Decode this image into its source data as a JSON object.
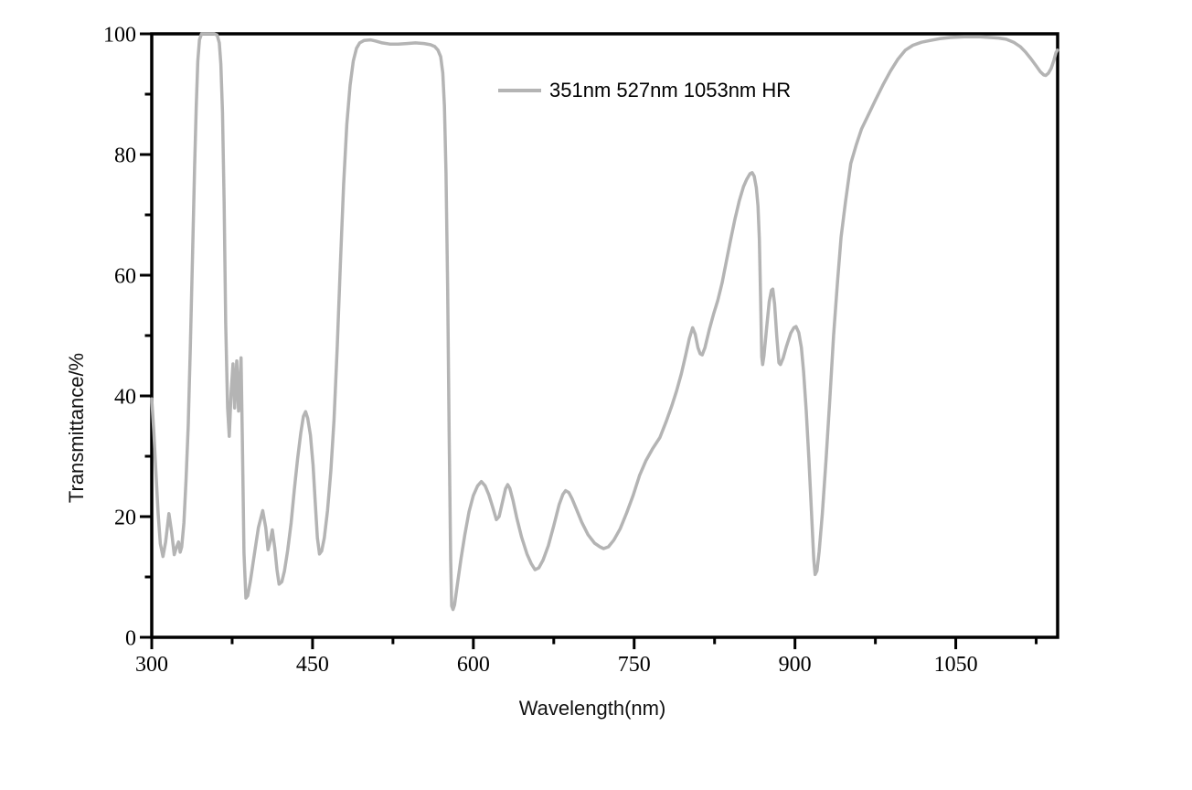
{
  "chart_data": {
    "type": "line",
    "title": "",
    "xlabel": "Wavelength(nm)",
    "ylabel": "Transmittance/%",
    "xlim": [
      300,
      1145
    ],
    "ylim": [
      0,
      100
    ],
    "grid": false,
    "legend_position": "inside-top-center",
    "x_major_ticks": [
      300,
      450,
      600,
      750,
      900,
      1050
    ],
    "x_minor_ticks": [
      375,
      525,
      675,
      825,
      975,
      1125
    ],
    "y_major_ticks": [
      0,
      20,
      40,
      60,
      80,
      100
    ],
    "y_minor_ticks": [
      10,
      30,
      50,
      70,
      90
    ],
    "colors": {
      "curve": "#b4b4b4",
      "axis": "#000000",
      "tick_text": "#000000",
      "title_text": "#111111",
      "background": "#ffffff"
    },
    "series": [
      {
        "name": "351nm 527nm 1053nm HR",
        "color": "#b4b4b4",
        "points": [
          [
            300,
            39.5
          ],
          [
            302,
            34
          ],
          [
            304,
            27
          ],
          [
            306,
            20.5
          ],
          [
            308,
            15.5
          ],
          [
            310.5,
            13.4
          ],
          [
            313,
            15.8
          ],
          [
            316,
            20.5
          ],
          [
            318.5,
            17.5
          ],
          [
            321,
            13.7
          ],
          [
            323,
            14.9
          ],
          [
            325,
            15.8
          ],
          [
            326.5,
            14.1
          ],
          [
            328,
            15
          ],
          [
            330,
            19
          ],
          [
            332,
            26
          ],
          [
            334,
            35
          ],
          [
            336,
            48
          ],
          [
            338,
            63
          ],
          [
            340,
            78
          ],
          [
            341.5,
            88
          ],
          [
            343,
            95.5
          ],
          [
            344.5,
            99
          ],
          [
            346.5,
            100
          ],
          [
            352,
            100
          ],
          [
            358,
            100
          ],
          [
            361,
            99.8
          ],
          [
            363,
            98.5
          ],
          [
            364.5,
            95
          ],
          [
            366,
            87
          ],
          [
            367.5,
            72
          ],
          [
            369,
            52
          ],
          [
            370.8,
            38
          ],
          [
            372.3,
            33.3
          ],
          [
            374,
            40.5
          ],
          [
            375.8,
            45.3
          ],
          [
            377.3,
            38
          ],
          [
            379.3,
            45.8
          ],
          [
            381,
            37.5
          ],
          [
            383.3,
            46.3
          ],
          [
            384.6,
            32
          ],
          [
            386,
            14
          ],
          [
            387.8,
            6.5
          ],
          [
            389.5,
            6.9
          ],
          [
            392,
            9.3
          ],
          [
            395.5,
            13.5
          ],
          [
            399.5,
            18.2
          ],
          [
            403.5,
            21
          ],
          [
            406.3,
            18.2
          ],
          [
            408.5,
            14.5
          ],
          [
            410.5,
            15.9
          ],
          [
            412.5,
            17.8
          ],
          [
            414.8,
            14.8
          ],
          [
            416.8,
            11.2
          ],
          [
            418.8,
            8.8
          ],
          [
            421.3,
            9.2
          ],
          [
            423.8,
            11
          ],
          [
            426.8,
            14.4
          ],
          [
            430,
            19
          ],
          [
            433,
            24.5
          ],
          [
            436,
            29.5
          ],
          [
            439,
            33.8
          ],
          [
            441.5,
            36.6
          ],
          [
            443.5,
            37.4
          ],
          [
            445.5,
            36.3
          ],
          [
            448,
            33.5
          ],
          [
            450.5,
            28.5
          ],
          [
            452.5,
            22.5
          ],
          [
            454.5,
            16.5
          ],
          [
            456.5,
            13.8
          ],
          [
            458.5,
            14.3
          ],
          [
            461,
            16.5
          ],
          [
            464,
            21
          ],
          [
            467,
            27.5
          ],
          [
            470,
            36
          ],
          [
            473,
            48
          ],
          [
            476,
            62
          ],
          [
            479,
            75
          ],
          [
            482,
            85
          ],
          [
            485,
            91.5
          ],
          [
            488,
            95.5
          ],
          [
            491,
            97.6
          ],
          [
            494,
            98.5
          ],
          [
            498,
            98.9
          ],
          [
            504,
            99
          ],
          [
            509,
            98.8
          ],
          [
            515,
            98.5
          ],
          [
            522,
            98.3
          ],
          [
            530,
            98.3
          ],
          [
            538,
            98.4
          ],
          [
            546,
            98.5
          ],
          [
            554,
            98.4
          ],
          [
            560,
            98.2
          ],
          [
            564,
            97.9
          ],
          [
            567,
            97.3
          ],
          [
            569.5,
            96.2
          ],
          [
            571.5,
            93.5
          ],
          [
            573,
            88
          ],
          [
            574.5,
            77
          ],
          [
            576,
            58
          ],
          [
            577.5,
            33
          ],
          [
            578.8,
            13
          ],
          [
            579.8,
            5.2
          ],
          [
            581,
            4.6
          ],
          [
            582.5,
            5.4
          ],
          [
            585,
            8.6
          ],
          [
            588.5,
            13
          ],
          [
            592,
            17
          ],
          [
            596,
            20.8
          ],
          [
            600,
            23.5
          ],
          [
            604,
            25.1
          ],
          [
            607.5,
            25.8
          ],
          [
            611,
            25.1
          ],
          [
            614.5,
            23.6
          ],
          [
            618,
            21.6
          ],
          [
            621.5,
            19.5
          ],
          [
            624,
            20
          ],
          [
            627,
            22.3
          ],
          [
            630,
            24.6
          ],
          [
            632,
            25.3
          ],
          [
            634,
            24.7
          ],
          [
            637,
            22.7
          ],
          [
            640.5,
            19.8
          ],
          [
            645,
            16.6
          ],
          [
            650,
            13.8
          ],
          [
            654,
            12.2
          ],
          [
            657.5,
            11.2
          ],
          [
            661,
            11.5
          ],
          [
            665,
            12.8
          ],
          [
            670,
            15.2
          ],
          [
            675,
            18.5
          ],
          [
            680,
            22
          ],
          [
            683.5,
            23.7
          ],
          [
            686,
            24.3
          ],
          [
            689,
            24
          ],
          [
            692,
            23
          ],
          [
            696,
            21.3
          ],
          [
            701,
            19.1
          ],
          [
            707,
            17
          ],
          [
            713,
            15.6
          ],
          [
            718,
            15
          ],
          [
            721.5,
            14.7
          ],
          [
            726,
            15
          ],
          [
            731,
            16.1
          ],
          [
            737,
            18
          ],
          [
            743,
            20.6
          ],
          [
            749,
            23.5
          ],
          [
            755,
            26.8
          ],
          [
            761,
            29.3
          ],
          [
            767,
            31.2
          ],
          [
            774,
            33.1
          ],
          [
            780,
            35.8
          ],
          [
            785,
            38.3
          ],
          [
            789.5,
            40.8
          ],
          [
            794,
            43.7
          ],
          [
            798,
            46.7
          ],
          [
            801.5,
            49.5
          ],
          [
            804.5,
            51.3
          ],
          [
            807,
            50.2
          ],
          [
            809.5,
            48
          ],
          [
            811.5,
            47
          ],
          [
            813.5,
            46.8
          ],
          [
            816,
            48
          ],
          [
            820,
            50.9
          ],
          [
            824,
            53.5
          ],
          [
            828,
            55.8
          ],
          [
            832,
            58.7
          ],
          [
            836,
            62.3
          ],
          [
            840,
            65.9
          ],
          [
            844,
            69.3
          ],
          [
            848,
            72.3
          ],
          [
            852,
            74.7
          ],
          [
            855,
            75.9
          ],
          [
            858,
            76.8
          ],
          [
            860,
            77
          ],
          [
            862,
            76.4
          ],
          [
            864,
            74.5
          ],
          [
            865.5,
            71.5
          ],
          [
            866.8,
            66
          ],
          [
            868,
            56
          ],
          [
            869,
            46.5
          ],
          [
            869.8,
            45.2
          ],
          [
            871,
            46.6
          ],
          [
            873.5,
            51.2
          ],
          [
            876,
            55.6
          ],
          [
            878,
            57.5
          ],
          [
            879.3,
            57.7
          ],
          [
            881,
            55.2
          ],
          [
            883,
            50
          ],
          [
            885,
            45.5
          ],
          [
            886.5,
            45.2
          ],
          [
            889,
            46.3
          ],
          [
            892,
            48.2
          ],
          [
            896,
            50.4
          ],
          [
            899,
            51.3
          ],
          [
            901,
            51.5
          ],
          [
            903.5,
            50.5
          ],
          [
            906,
            48
          ],
          [
            908,
            44
          ],
          [
            910.5,
            37.5
          ],
          [
            913,
            29.5
          ],
          [
            915.5,
            20.5
          ],
          [
            917.5,
            13
          ],
          [
            918.8,
            10.4
          ],
          [
            920.5,
            11
          ],
          [
            922.5,
            14.2
          ],
          [
            925.5,
            20.5
          ],
          [
            929,
            29.5
          ],
          [
            932.5,
            39.5
          ],
          [
            936,
            50
          ],
          [
            939.5,
            58.5
          ],
          [
            943,
            66.3
          ],
          [
            947,
            72
          ],
          [
            952,
            78.5
          ],
          [
            957,
            81.5
          ],
          [
            962,
            84.2
          ],
          [
            968,
            86.4
          ],
          [
            975,
            89
          ],
          [
            982,
            91.5
          ],
          [
            989,
            93.8
          ],
          [
            996,
            95.8
          ],
          [
            1003,
            97.3
          ],
          [
            1010,
            98.1
          ],
          [
            1018,
            98.6
          ],
          [
            1026,
            98.9
          ],
          [
            1035,
            99.2
          ],
          [
            1045,
            99.4
          ],
          [
            1058,
            99.5
          ],
          [
            1072,
            99.5
          ],
          [
            1082,
            99.4
          ],
          [
            1090,
            99.3
          ],
          [
            1097,
            99.1
          ],
          [
            1104,
            98.6
          ],
          [
            1110,
            97.9
          ],
          [
            1115,
            97
          ],
          [
            1120,
            95.9
          ],
          [
            1125,
            94.7
          ],
          [
            1129,
            93.7
          ],
          [
            1132,
            93.2
          ],
          [
            1134,
            93.1
          ],
          [
            1136.5,
            93.5
          ],
          [
            1139,
            94.3
          ],
          [
            1141.5,
            95.6
          ],
          [
            1143.5,
            96.9
          ],
          [
            1144.8,
            97.3
          ]
        ]
      }
    ]
  }
}
